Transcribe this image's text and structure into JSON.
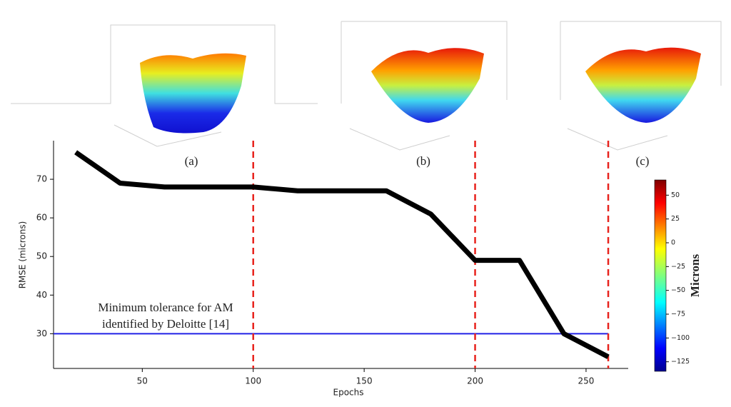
{
  "chart_data": {
    "type": "line",
    "xlabel": "Epochs",
    "ylabel": "RMSE (microns)",
    "x": [
      20,
      40,
      60,
      80,
      100,
      120,
      140,
      160,
      180,
      200,
      220,
      240,
      260
    ],
    "values": [
      77,
      69,
      68,
      68,
      68,
      67,
      67,
      67,
      61,
      49,
      49,
      30,
      24
    ],
    "color": "#000000",
    "xlim": [
      10,
      269
    ],
    "xticks": [
      50,
      100,
      150,
      200,
      250
    ],
    "ylim": [
      21,
      80
    ],
    "yticks": [
      30,
      40,
      50,
      60,
      70
    ],
    "vlines": [
      100,
      200,
      260
    ],
    "vline_color": "#e8231d",
    "hline": 30,
    "hline_color": "#2222e6",
    "annotation": [
      "Minimum tolerance for AM",
      "identified by Deloitte [14]"
    ],
    "panels": [
      "(a)",
      "(b)",
      "(c)"
    ],
    "colorbar": {
      "label": "Microns",
      "lim": [
        -135,
        66
      ],
      "ticks": [
        50,
        25,
        0,
        {
          "value": -25,
          "label": "−25"
        },
        {
          "value": -50,
          "label": "−50"
        },
        {
          "value": -75,
          "label": "−75"
        },
        {
          "value": -100,
          "label": "−100"
        },
        {
          "value": -125,
          "label": "−125"
        }
      ]
    }
  }
}
